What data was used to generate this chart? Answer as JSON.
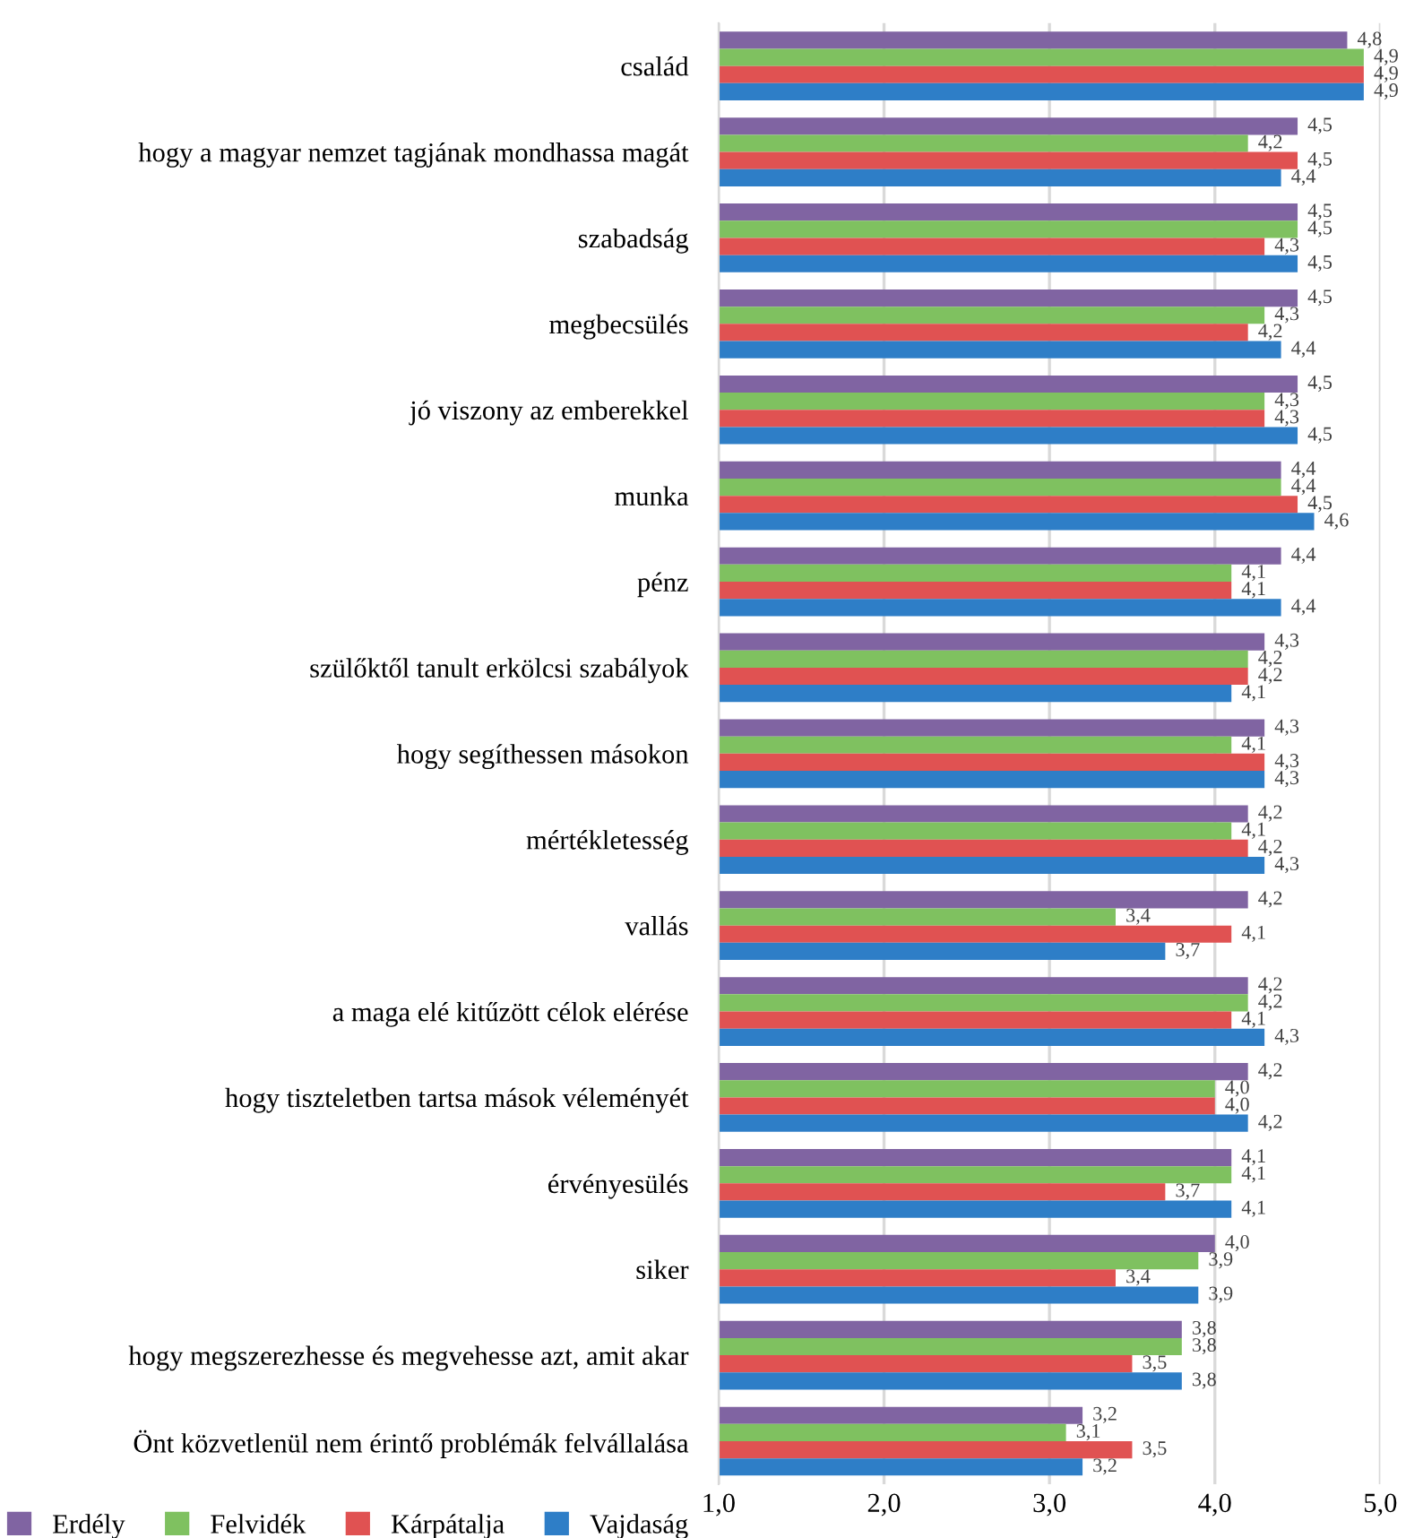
{
  "chart_data": {
    "type": "bar",
    "orientation": "horizontal",
    "categories": [
      "család",
      "hogy a magyar nemzet tagjának mondhassa magát",
      "szabadság",
      "megbecsülés",
      "jó viszony az emberekkel",
      "munka",
      "pénz",
      "szülőktől tanult erkölcsi szabályok",
      "hogy segíthessen másokon",
      "mértékletesség",
      "vallás",
      "a maga elé kitűzött célok elérése",
      "hogy tiszteletben tartsa mások véleményét",
      "érvényesülés",
      "siker",
      "hogy megszerezhesse és megvehesse azt, amit akar",
      "Önt közvetlenül nem érintő problémák felvállalása"
    ],
    "series": [
      {
        "name": "Erdély",
        "color": "#8064a2",
        "values": [
          4.8,
          4.5,
          4.5,
          4.5,
          4.5,
          4.4,
          4.4,
          4.3,
          4.3,
          4.2,
          4.2,
          4.2,
          4.2,
          4.1,
          4.0,
          3.8,
          3.2
        ],
        "value_labels": [
          "4,8",
          "4,5",
          "4,5",
          "4,5",
          "4,5",
          "4,4",
          "4,4",
          "4,3",
          "4,3",
          "4,2",
          "4,2",
          "4,2",
          "4,2",
          "4,1",
          "4,0",
          "3,8",
          "3,2"
        ]
      },
      {
        "name": "Felvidék",
        "color": "#7fc160",
        "values": [
          4.9,
          4.2,
          4.5,
          4.3,
          4.3,
          4.4,
          4.1,
          4.2,
          4.1,
          4.1,
          3.4,
          4.2,
          4.0,
          4.1,
          3.9,
          3.8,
          3.1
        ],
        "value_labels": [
          "4,9",
          "4,2",
          "4,5",
          "4,3",
          "4,3",
          "4,4",
          "4,1",
          "4,2",
          "4,1",
          "4,1",
          "3,4",
          "4,2",
          "4,0",
          "4,1",
          "3,9",
          "3,8",
          "3,1"
        ]
      },
      {
        "name": "Kárpátalja",
        "color": "#e05252",
        "values": [
          4.9,
          4.5,
          4.3,
          4.2,
          4.3,
          4.5,
          4.1,
          4.2,
          4.3,
          4.2,
          4.1,
          4.1,
          4.0,
          3.7,
          3.4,
          3.5,
          3.5
        ],
        "value_labels": [
          "4,9",
          "4,5",
          "4,3",
          "4,2",
          "4,3",
          "4,5",
          "4,1",
          "4,2",
          "4,3",
          "4,2",
          "4,1",
          "4,1",
          "4,0",
          "3,7",
          "3,4",
          "3,5",
          "3,5"
        ]
      },
      {
        "name": "Vajdaság",
        "color": "#2e7ec7",
        "values": [
          4.9,
          4.4,
          4.5,
          4.4,
          4.5,
          4.6,
          4.4,
          4.1,
          4.3,
          4.3,
          3.7,
          4.3,
          4.2,
          4.1,
          3.9,
          3.8,
          3.2
        ],
        "value_labels": [
          "4,9",
          "4,4",
          "4,5",
          "4,4",
          "4,5",
          "4,6",
          "4,4",
          "4,1",
          "4,3",
          "4,3",
          "3,7",
          "4,3",
          "4,2",
          "4,1",
          "3,9",
          "3,8",
          "3,2"
        ]
      }
    ],
    "xlim": [
      1.0,
      5.0
    ],
    "xticks": [
      {
        "value": 1.0,
        "label": "1,0"
      },
      {
        "value": 2.0,
        "label": "2,0"
      },
      {
        "value": 3.0,
        "label": "3,0"
      },
      {
        "value": 4.0,
        "label": "4,0"
      },
      {
        "value": 5.0,
        "label": "5,0"
      }
    ],
    "grid": "x",
    "legend": "bottom left"
  }
}
